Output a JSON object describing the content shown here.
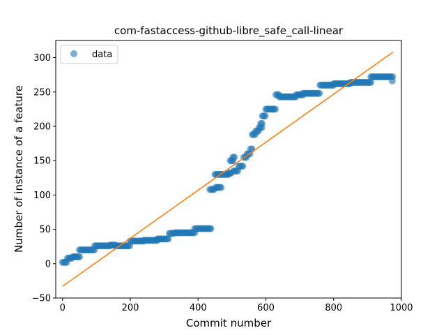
{
  "chart_data": {
    "type": "scatter",
    "title": "com-fastaccess-github-libre_safe_call-linear",
    "xlabel": "Commit number",
    "ylabel": "Number of instance of a feature",
    "xlim": [
      -20,
      1000
    ],
    "ylim": [
      -50,
      325
    ],
    "xticks": [
      0,
      200,
      400,
      600,
      800,
      1000
    ],
    "yticks": [
      -50,
      0,
      50,
      100,
      150,
      200,
      250,
      300
    ],
    "xtick_labels": [
      "0",
      "200",
      "400",
      "600",
      "800",
      "1000"
    ],
    "ytick_labels": [
      "−50",
      "0",
      "50",
      "100",
      "150",
      "200",
      "250",
      "300"
    ],
    "grid": false,
    "legend": {
      "entries": [
        "data"
      ],
      "placement": "top-left"
    },
    "colors": {
      "data": "#1f77b4",
      "fit": "#ff7f0e"
    },
    "series": [
      {
        "name": "data",
        "kind": "scatter",
        "segments": [
          [
            0,
            12,
            2
          ],
          [
            15,
            30,
            8
          ],
          [
            30,
            50,
            10
          ],
          [
            50,
            95,
            20
          ],
          [
            95,
            140,
            26
          ],
          [
            140,
            158,
            27
          ],
          [
            158,
            200,
            26
          ],
          [
            200,
            240,
            33
          ],
          [
            240,
            280,
            34
          ],
          [
            280,
            315,
            36
          ],
          [
            315,
            330,
            44
          ],
          [
            330,
            390,
            45
          ],
          [
            390,
            440,
            51
          ],
          [
            435,
            450,
            108
          ],
          [
            452,
            468,
            111
          ],
          [
            450,
            490,
            130
          ],
          [
            490,
            500,
            132
          ],
          [
            495,
            505,
            150
          ],
          [
            503,
            510,
            155
          ],
          [
            505,
            520,
            135
          ],
          [
            520,
            535,
            142
          ],
          [
            535,
            545,
            155
          ],
          [
            545,
            555,
            160
          ],
          [
            555,
            560,
            167
          ],
          [
            560,
            570,
            188
          ],
          [
            570,
            580,
            193
          ],
          [
            580,
            590,
            198
          ],
          [
            585,
            590,
            204
          ],
          [
            590,
            600,
            215
          ],
          [
            600,
            630,
            225
          ],
          [
            630,
            640,
            246
          ],
          [
            640,
            690,
            243
          ],
          [
            690,
            710,
            246
          ],
          [
            710,
            760,
            248
          ],
          [
            760,
            800,
            260
          ],
          [
            800,
            850,
            262
          ],
          [
            850,
            910,
            264
          ],
          [
            910,
            975,
            272
          ]
        ],
        "extra_points": [
          [
            973,
            266
          ]
        ]
      },
      {
        "name": "",
        "kind": "line",
        "x": [
          0,
          975
        ],
        "y": [
          -33,
          308
        ]
      }
    ]
  }
}
